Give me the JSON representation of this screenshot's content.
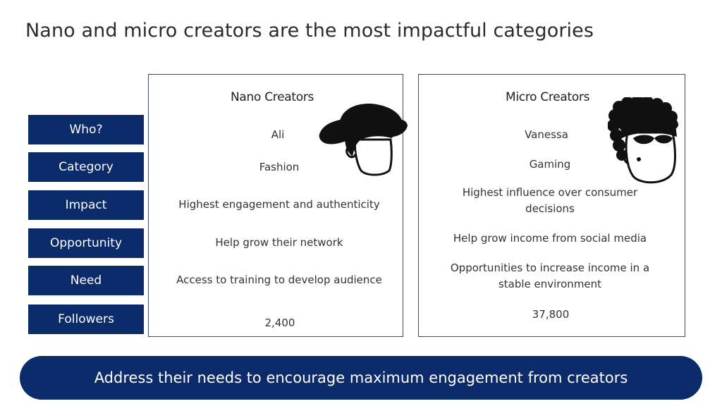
{
  "title": "Nano and micro creators are the most impactful categories",
  "row_labels": [
    "Who?",
    "Category",
    "Impact",
    "Opportunity",
    "Need",
    "Followers"
  ],
  "nano": {
    "heading": "Nano Creators",
    "who": "Ali",
    "category": "Fashion",
    "impact": "Highest engagement and authenticity",
    "opportunity": "Help grow their network",
    "need": "Access to training to develop audience",
    "followers": "2,400",
    "avatar_icon": "person-hat-icon"
  },
  "micro": {
    "heading": "Micro Creators",
    "who": "Vanessa",
    "category": "Gaming",
    "impact": "Highest influence over consumer decisions",
    "opportunity": "Help grow income from social media",
    "need": "Opportunities to increase income in a stable environment",
    "followers": "37,800",
    "avatar_icon": "person-bandana-icon"
  },
  "footer": "Address their needs to encourage maximum engagement from creators",
  "colors": {
    "accent": "#0c2b6b",
    "border": "#2e4a7c"
  }
}
